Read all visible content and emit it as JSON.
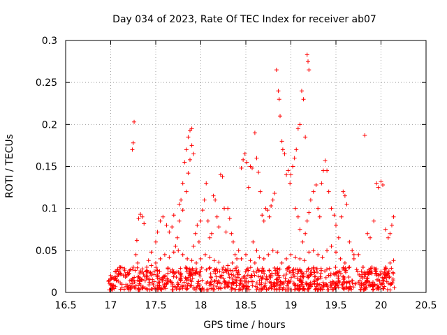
{
  "chart_data": {
    "type": "scatter",
    "title": "Day 034 of 2023, Rate Of TEC Index for receiver ab07",
    "xlabel": "GPS time / hours",
    "ylabel": "ROTI / TECUs",
    "xlim": [
      16.5,
      20.5
    ],
    "ylim": [
      0,
      0.3
    ],
    "x_ticks": [
      "16.5",
      "17",
      "17.5",
      "18",
      "18.5",
      "19",
      "19.5",
      "20",
      "20.5"
    ],
    "y_ticks": [
      "0",
      "0.05",
      "0.1",
      "0.15",
      "0.2",
      "0.25",
      "0.3"
    ],
    "grid": true,
    "marker": "+",
    "color": "#ff0000",
    "series": [
      {
        "points": [
          [
            17.24,
            0.17
          ],
          [
            17.25,
            0.178
          ],
          [
            17.26,
            0.203
          ],
          [
            17.28,
            0.045
          ],
          [
            17.29,
            0.062
          ],
          [
            17.31,
            0.088
          ],
          [
            17.33,
            0.093
          ],
          [
            17.35,
            0.09
          ],
          [
            17.37,
            0.082
          ],
          [
            17.42,
            0.038
          ],
          [
            17.45,
            0.048
          ],
          [
            17.5,
            0.06
          ],
          [
            17.52,
            0.072
          ],
          [
            17.55,
            0.085
          ],
          [
            17.58,
            0.09
          ],
          [
            17.62,
            0.08
          ],
          [
            17.65,
            0.072
          ],
          [
            17.68,
            0.078
          ],
          [
            17.7,
            0.092
          ],
          [
            17.72,
            0.055
          ],
          [
            17.74,
            0.065
          ],
          [
            17.76,
            0.085
          ],
          [
            17.78,
            0.11
          ],
          [
            17.8,
            0.13
          ],
          [
            17.82,
            0.155
          ],
          [
            17.84,
            0.17
          ],
          [
            17.86,
            0.185
          ],
          [
            17.88,
            0.193
          ],
          [
            17.9,
            0.195
          ],
          [
            17.86,
            0.142
          ],
          [
            17.88,
            0.158
          ],
          [
            17.9,
            0.175
          ],
          [
            17.92,
            0.165
          ],
          [
            17.84,
            0.12
          ],
          [
            17.8,
            0.098
          ],
          [
            17.76,
            0.105
          ],
          [
            17.92,
            0.055
          ],
          [
            17.94,
            0.07
          ],
          [
            17.96,
            0.08
          ],
          [
            17.98,
            0.06
          ],
          [
            18.0,
            0.085
          ],
          [
            18.02,
            0.098
          ],
          [
            18.04,
            0.11
          ],
          [
            18.06,
            0.13
          ],
          [
            18.08,
            0.085
          ],
          [
            18.1,
            0.065
          ],
          [
            18.12,
            0.07
          ],
          [
            18.14,
            0.115
          ],
          [
            18.16,
            0.11
          ],
          [
            18.18,
            0.09
          ],
          [
            18.2,
            0.078
          ],
          [
            18.22,
            0.14
          ],
          [
            18.24,
            0.138
          ],
          [
            18.26,
            0.1
          ],
          [
            18.28,
            0.072
          ],
          [
            18.3,
            0.1
          ],
          [
            18.32,
            0.088
          ],
          [
            18.34,
            0.07
          ],
          [
            18.36,
            0.06
          ],
          [
            18.38,
            0.045
          ],
          [
            18.4,
            0.04
          ],
          [
            18.42,
            0.05
          ],
          [
            18.45,
            0.148
          ],
          [
            18.47,
            0.158
          ],
          [
            18.49,
            0.165
          ],
          [
            18.51,
            0.155
          ],
          [
            18.53,
            0.125
          ],
          [
            18.55,
            0.15
          ],
          [
            18.57,
            0.148
          ],
          [
            18.6,
            0.19
          ],
          [
            18.62,
            0.16
          ],
          [
            18.64,
            0.143
          ],
          [
            18.58,
            0.06
          ],
          [
            18.62,
            0.05
          ],
          [
            18.66,
            0.12
          ],
          [
            18.68,
            0.092
          ],
          [
            18.7,
            0.085
          ],
          [
            18.72,
            0.1
          ],
          [
            18.74,
            0.098
          ],
          [
            18.76,
            0.09
          ],
          [
            18.78,
            0.103
          ],
          [
            18.8,
            0.11
          ],
          [
            18.82,
            0.118
          ],
          [
            18.84,
            0.265
          ],
          [
            18.86,
            0.24
          ],
          [
            18.87,
            0.23
          ],
          [
            18.88,
            0.21
          ],
          [
            18.9,
            0.18
          ],
          [
            18.91,
            0.17
          ],
          [
            18.93,
            0.165
          ],
          [
            18.95,
            0.14
          ],
          [
            18.97,
            0.145
          ],
          [
            18.99,
            0.13
          ],
          [
            19.0,
            0.14
          ],
          [
            19.02,
            0.15
          ],
          [
            19.04,
            0.16
          ],
          [
            19.06,
            0.17
          ],
          [
            19.08,
            0.195
          ],
          [
            19.1,
            0.2
          ],
          [
            19.12,
            0.24
          ],
          [
            19.14,
            0.23
          ],
          [
            19.16,
            0.185
          ],
          [
            19.18,
            0.283
          ],
          [
            19.19,
            0.275
          ],
          [
            19.2,
            0.265
          ],
          [
            19.05,
            0.1
          ],
          [
            19.08,
            0.09
          ],
          [
            19.1,
            0.075
          ],
          [
            19.13,
            0.06
          ],
          [
            19.16,
            0.07
          ],
          [
            19.18,
            0.085
          ],
          [
            19.2,
            0.095
          ],
          [
            19.22,
            0.11
          ],
          [
            19.25,
            0.12
          ],
          [
            19.28,
            0.128
          ],
          [
            19.3,
            0.1
          ],
          [
            19.32,
            0.09
          ],
          [
            19.34,
            0.13
          ],
          [
            19.36,
            0.145
          ],
          [
            19.38,
            0.157
          ],
          [
            19.4,
            0.145
          ],
          [
            19.42,
            0.12
          ],
          [
            19.45,
            0.1
          ],
          [
            19.48,
            0.092
          ],
          [
            19.5,
            0.08
          ],
          [
            19.53,
            0.065
          ],
          [
            19.56,
            0.09
          ],
          [
            19.58,
            0.12
          ],
          [
            19.6,
            0.115
          ],
          [
            19.62,
            0.105
          ],
          [
            19.65,
            0.06
          ],
          [
            19.68,
            0.05
          ],
          [
            19.7,
            0.045
          ],
          [
            19.82,
            0.187
          ],
          [
            19.85,
            0.07
          ],
          [
            19.88,
            0.065
          ],
          [
            19.92,
            0.085
          ],
          [
            19.95,
            0.13
          ],
          [
            19.97,
            0.125
          ],
          [
            20.0,
            0.132
          ],
          [
            20.02,
            0.128
          ],
          [
            20.05,
            0.075
          ],
          [
            20.08,
            0.065
          ],
          [
            20.1,
            0.07
          ],
          [
            20.12,
            0.08
          ],
          [
            20.14,
            0.09
          ],
          [
            17.0,
            0.02
          ],
          [
            17.05,
            0.025
          ],
          [
            17.1,
            0.03
          ],
          [
            17.15,
            0.028
          ],
          [
            17.2,
            0.022
          ],
          [
            17.25,
            0.03
          ],
          [
            17.3,
            0.035
          ],
          [
            17.35,
            0.028
          ],
          [
            17.4,
            0.03
          ],
          [
            17.45,
            0.032
          ],
          [
            17.5,
            0.035
          ],
          [
            17.55,
            0.04
          ],
          [
            17.6,
            0.045
          ],
          [
            17.65,
            0.042
          ],
          [
            17.7,
            0.048
          ],
          [
            17.75,
            0.05
          ],
          [
            17.8,
            0.045
          ],
          [
            17.85,
            0.04
          ],
          [
            17.9,
            0.038
          ],
          [
            17.95,
            0.035
          ],
          [
            18.0,
            0.04
          ],
          [
            18.05,
            0.045
          ],
          [
            18.1,
            0.042
          ],
          [
            18.15,
            0.038
          ],
          [
            18.2,
            0.036
          ],
          [
            18.25,
            0.03
          ],
          [
            18.3,
            0.032
          ],
          [
            18.35,
            0.035
          ],
          [
            18.4,
            0.03
          ],
          [
            18.45,
            0.04
          ],
          [
            18.5,
            0.045
          ],
          [
            18.55,
            0.038
          ],
          [
            18.6,
            0.035
          ],
          [
            18.65,
            0.042
          ],
          [
            18.7,
            0.04
          ],
          [
            18.75,
            0.045
          ],
          [
            18.8,
            0.05
          ],
          [
            18.85,
            0.048
          ],
          [
            18.9,
            0.035
          ],
          [
            18.95,
            0.04
          ],
          [
            19.0,
            0.045
          ],
          [
            19.05,
            0.042
          ],
          [
            19.1,
            0.04
          ],
          [
            19.15,
            0.038
          ],
          [
            19.2,
            0.048
          ],
          [
            19.25,
            0.05
          ],
          [
            19.3,
            0.045
          ],
          [
            19.35,
            0.042
          ],
          [
            19.4,
            0.05
          ],
          [
            19.45,
            0.055
          ],
          [
            19.5,
            0.048
          ],
          [
            19.55,
            0.04
          ],
          [
            19.6,
            0.035
          ],
          [
            19.65,
            0.03
          ],
          [
            19.7,
            0.04
          ],
          [
            19.75,
            0.045
          ],
          [
            19.8,
            0.03
          ],
          [
            19.85,
            0.025
          ],
          [
            19.9,
            0.03
          ],
          [
            19.95,
            0.028
          ],
          [
            20.0,
            0.025
          ],
          [
            20.05,
            0.03
          ],
          [
            20.1,
            0.035
          ],
          [
            20.14,
            0.038
          ]
        ]
      }
    ],
    "dense_band": {
      "x_range": [
        16.97,
        20.15
      ],
      "y_range": [
        0.003,
        0.03
      ]
    }
  }
}
